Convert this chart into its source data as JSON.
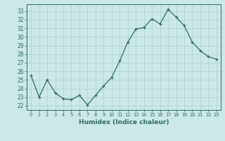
{
  "x": [
    0,
    1,
    2,
    3,
    4,
    5,
    6,
    7,
    8,
    9,
    10,
    11,
    12,
    13,
    14,
    15,
    16,
    17,
    18,
    19,
    20,
    21,
    22,
    23
  ],
  "y": [
    25.5,
    23.0,
    25.0,
    23.5,
    22.8,
    22.7,
    23.2,
    22.1,
    23.2,
    24.3,
    25.3,
    27.2,
    29.4,
    30.9,
    31.1,
    32.1,
    31.5,
    33.2,
    32.3,
    31.3,
    29.4,
    28.4,
    27.7,
    27.4
  ],
  "xlabel": "Humidex (Indice chaleur)",
  "ylabel": "",
  "xlim": [
    -0.5,
    23.5
  ],
  "ylim": [
    21.5,
    33.8
  ],
  "yticks": [
    22,
    23,
    24,
    25,
    26,
    27,
    28,
    29,
    30,
    31,
    32,
    33
  ],
  "xticks": [
    0,
    1,
    2,
    3,
    4,
    5,
    6,
    7,
    8,
    9,
    10,
    11,
    12,
    13,
    14,
    15,
    16,
    17,
    18,
    19,
    20,
    21,
    22,
    23
  ],
  "line_color": "#2e6b5e",
  "marker": "+",
  "bg_color": "#cce8e8",
  "grid_color": "#b0d4d4",
  "axis_color": "#2e6b5e",
  "tick_color": "#2e6b5e",
  "label_color": "#2e6b5e"
}
